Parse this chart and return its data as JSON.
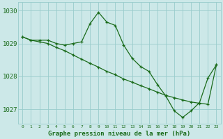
{
  "xlabel": "Graphe pression niveau de la mer (hPa)",
  "bg_color": "#cce8e8",
  "grid_color": "#99cccc",
  "line_color": "#1a6b1a",
  "hours": [
    0,
    1,
    2,
    3,
    4,
    5,
    6,
    7,
    8,
    9,
    10,
    11,
    12,
    13,
    14,
    15,
    16,
    17,
    18,
    19,
    20,
    21,
    22,
    23
  ],
  "pressure_actual": [
    1029.2,
    1029.1,
    1029.1,
    1029.1,
    1029.0,
    1028.95,
    1029.0,
    1029.05,
    1029.6,
    1029.95,
    1029.65,
    1029.55,
    1028.95,
    1028.55,
    1028.3,
    1028.15,
    1027.75,
    1027.4,
    1026.95,
    1026.75,
    1026.95,
    1027.2,
    1027.95,
    1028.35
  ],
  "pressure_trend": [
    1029.2,
    1029.1,
    1029.05,
    1029.0,
    1028.88,
    1028.78,
    1028.65,
    1028.52,
    1028.4,
    1028.28,
    1028.15,
    1028.05,
    1027.92,
    1027.82,
    1027.72,
    1027.62,
    1027.52,
    1027.42,
    1027.35,
    1027.28,
    1027.22,
    1027.18,
    1027.15,
    1028.35
  ],
  "ylim": [
    1026.55,
    1030.25
  ],
  "yticks": [
    1027,
    1028,
    1029,
    1030
  ],
  "xlim": [
    -0.5,
    23.5
  ]
}
